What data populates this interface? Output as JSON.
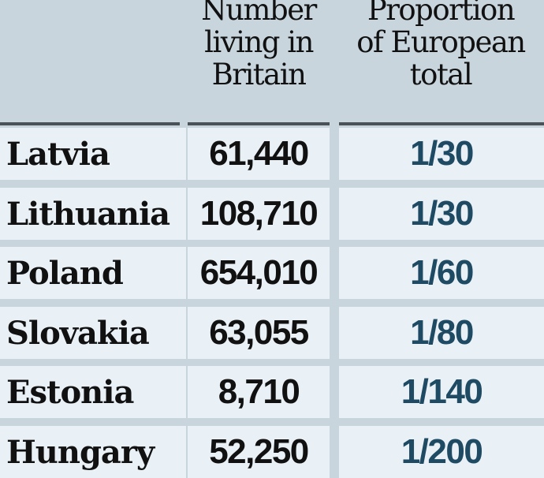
{
  "headers": {
    "number": [
      "Number",
      "living in",
      "Britain"
    ],
    "proportion": [
      "Proportion",
      "of European",
      "total"
    ]
  },
  "rows": [
    {
      "country": "Latvia",
      "number": "61,440",
      "proportion": "1/30"
    },
    {
      "country": "Lithuania",
      "number": "108,710",
      "proportion": "1/30"
    },
    {
      "country": "Poland",
      "number": "654,010",
      "proportion": "1/60"
    },
    {
      "country": "Slovakia",
      "number": "63,055",
      "proportion": "1/80"
    },
    {
      "country": "Estonia",
      "number": "8,710",
      "proportion": "1/140"
    },
    {
      "country": "Hungary",
      "number": "52,250",
      "proportion": "1/200"
    }
  ],
  "colors": {
    "background": "#c8d5dd",
    "cell": "#e9f1f6",
    "fraction": "#1f4a63"
  }
}
